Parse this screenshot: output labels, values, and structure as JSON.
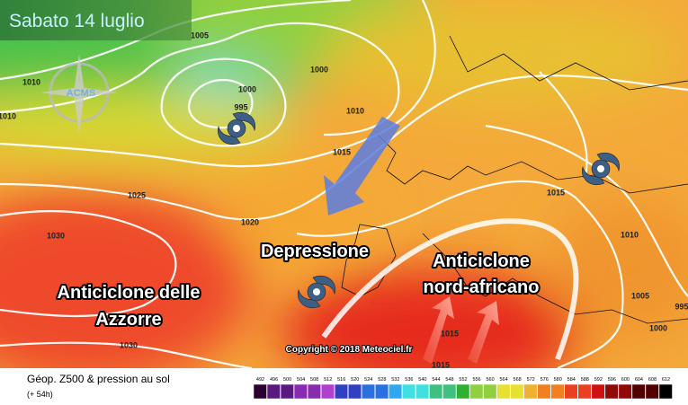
{
  "title": "Sabato 14 luglio",
  "labels": [
    "Depressione",
    "Anticiclone delle",
    "Azzorre",
    "Anticiclone",
    "nord-africano"
  ],
  "isobar_labels": [
    "1005",
    "1000",
    "1010",
    "1000",
    "995",
    "1010",
    "1010",
    "1015",
    "1025",
    "1020",
    "1030",
    "1015",
    "1010",
    "1005",
    "1000",
    "1015",
    "1030",
    "1015",
    "995"
  ],
  "logo": "ACMS",
  "copyright": "Copyright © 2018 Meteociel.fr",
  "footer": {
    "title": "Géop. Z500 & pression au sol",
    "lead": "(+ 54h)",
    "scale": [
      492,
      496,
      500,
      504,
      508,
      512,
      516,
      520,
      524,
      528,
      532,
      536,
      540,
      544,
      548,
      552,
      556,
      560,
      564,
      568,
      572,
      576,
      580,
      584,
      588,
      592,
      596,
      600,
      604,
      608,
      612
    ]
  }
}
